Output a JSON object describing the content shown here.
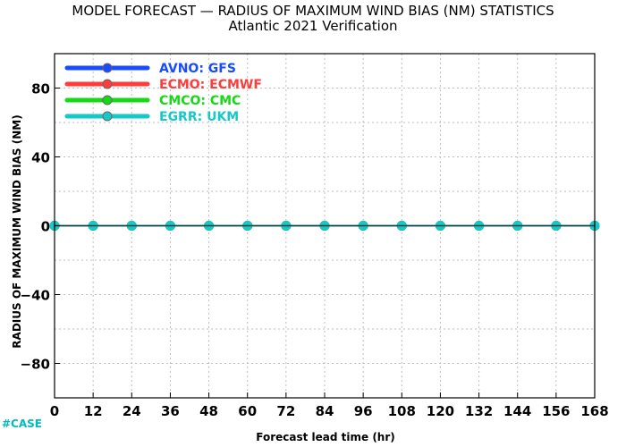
{
  "title": "MODEL FORECAST — RADIUS OF MAXIMUM WIND BIAS (NM) STATISTICS",
  "subtitle": "Atlantic 2021 Verification",
  "case_label": "#CASE",
  "chart_data": {
    "type": "line",
    "title": "MODEL FORECAST — RADIUS OF MAXIMUM WIND BIAS (NM) STATISTICS",
    "subtitle": "Atlantic 2021 Verification",
    "xlabel": "Forecast lead time (hr)",
    "ylabel": "RADIUS OF MAXIMUM WIND BIAS (NM)",
    "xlim": [
      0,
      168
    ],
    "ylim": [
      -100,
      100
    ],
    "xticks": [
      0,
      12,
      24,
      36,
      48,
      60,
      72,
      84,
      96,
      108,
      120,
      132,
      144,
      156,
      168
    ],
    "yticks": [
      80,
      40,
      0,
      -40,
      -80
    ],
    "grid": true,
    "legend_position": "top-left",
    "x": [
      0,
      12,
      24,
      36,
      48,
      60,
      72,
      84,
      96,
      108,
      120,
      132,
      144,
      156,
      168
    ],
    "series": [
      {
        "name": "AVNO: GFS",
        "label": "AVNO:",
        "model": "GFS",
        "color": "#1a4cff",
        "values": [
          0,
          0,
          0,
          0,
          0,
          0,
          0,
          0,
          0,
          0,
          0,
          0,
          0,
          0,
          0
        ]
      },
      {
        "name": "ECMO: ECMWF",
        "label": "ECMO:",
        "model": "ECMWF",
        "color": "#ff3b3b",
        "values": [
          0,
          0,
          0,
          0,
          0,
          0,
          0,
          0,
          0,
          0,
          0,
          0,
          0,
          0,
          0
        ]
      },
      {
        "name": "CMCO: CMC",
        "label": "CMCO:",
        "model": "CMC",
        "color": "#16d916",
        "values": [
          0,
          0,
          0,
          0,
          0,
          0,
          0,
          0,
          0,
          0,
          0,
          0,
          0,
          0,
          0
        ]
      },
      {
        "name": "EGRR: UKM",
        "label": "EGRR:",
        "model": "UKM",
        "color": "#16c8c8",
        "values": [
          0,
          0,
          0,
          0,
          0,
          0,
          0,
          0,
          0,
          0,
          0,
          0,
          0,
          0,
          0
        ]
      }
    ]
  }
}
